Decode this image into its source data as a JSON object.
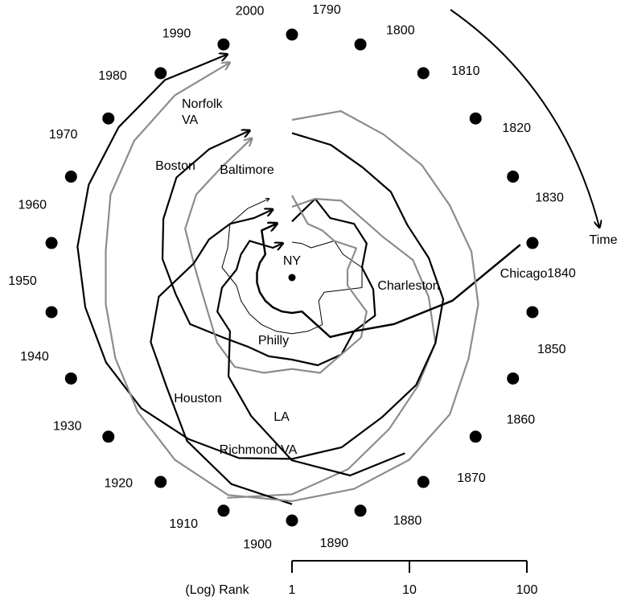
{
  "chart_data": {
    "type": "radial",
    "categories": [
      "1790",
      "1800",
      "1810",
      "1820",
      "1830",
      "1840",
      "1850",
      "1860",
      "1870",
      "1880",
      "1890",
      "1900",
      "1910",
      "1920",
      "1930",
      "1940",
      "1950",
      "1960",
      "1970",
      "1980",
      "1990",
      "2000"
    ],
    "rlim": [
      1,
      100
    ],
    "rticks": [
      1,
      10,
      100
    ],
    "log_scale": true,
    "axis_label": "(Log) Rank",
    "annotation": "Time",
    "series": [
      {
        "name": "NY",
        "color": "#000000",
        "values": [
          1,
          1,
          1,
          1,
          1,
          1,
          1,
          1,
          1,
          1,
          1,
          1,
          1,
          1,
          1,
          1,
          1,
          1,
          1,
          1,
          1,
          1
        ]
      },
      {
        "name": "Philly",
        "color": "#000000",
        "values": [
          2,
          2,
          2,
          3,
          3,
          4,
          4,
          2,
          2,
          3,
          3,
          3,
          3,
          3,
          3,
          3,
          3,
          4,
          4,
          5,
          5,
          5
        ]
      },
      {
        "name": "Boston",
        "color": "#000000",
        "values": [
          3,
          5,
          4,
          5,
          5,
          4,
          5,
          6,
          5,
          6,
          6,
          5,
          5,
          5,
          6,
          9,
          10,
          13,
          16,
          20,
          20,
          20
        ]
      },
      {
        "name": "Baltimore",
        "color": "#8c8c8c",
        "values": [
          5,
          3,
          3,
          3,
          4,
          3,
          3,
          5,
          6,
          6,
          7,
          6,
          7,
          8,
          7,
          6,
          6,
          7,
          10,
          12,
          13,
          17
        ]
      },
      {
        "name": "Charleston",
        "color": "#8c8c8c",
        "values": [
          4,
          5,
          6,
          6,
          7,
          11,
          15,
          22,
          26,
          34,
          50,
          70,
          90,
          null,
          null,
          null,
          null,
          null,
          null,
          null,
          null,
          null
        ]
      },
      {
        "name": "Chicago",
        "color": "#000000",
        "values": [
          null,
          null,
          null,
          null,
          null,
          92,
          24,
          9,
          5,
          4,
          2,
          2,
          2,
          2,
          2,
          2,
          2,
          2,
          2,
          2,
          3,
          3
        ]
      },
      {
        "name": "LA",
        "color": "#000000",
        "values": [
          null,
          null,
          null,
          null,
          null,
          null,
          null,
          null,
          null,
          60,
          57,
          36,
          17,
          10,
          5,
          5,
          4,
          3,
          3,
          3,
          2,
          2
        ]
      },
      {
        "name": "Houston",
        "color": "#000000",
        "values": [
          null,
          null,
          null,
          null,
          null,
          null,
          null,
          null,
          null,
          null,
          null,
          85,
          68,
          45,
          26,
          21,
          14,
          7,
          6,
          5,
          4,
          4
        ]
      },
      {
        "name": "Richmond VA",
        "color": "#000000",
        "values": [
          17,
          15,
          13,
          13,
          12,
          15,
          20,
          22,
          25,
          26,
          32,
          35,
          40,
          43,
          50,
          55,
          60,
          70,
          80,
          90,
          100,
          95
        ]
      },
      {
        "name": "Norfolk VA",
        "color": "#8c8c8c",
        "values": [
          22,
          30,
          28,
          29,
          30,
          35,
          40,
          45,
          60,
          70,
          75,
          80,
          85,
          70,
          55,
          45,
          40,
          40,
          50,
          60,
          70,
          80
        ]
      }
    ]
  }
}
